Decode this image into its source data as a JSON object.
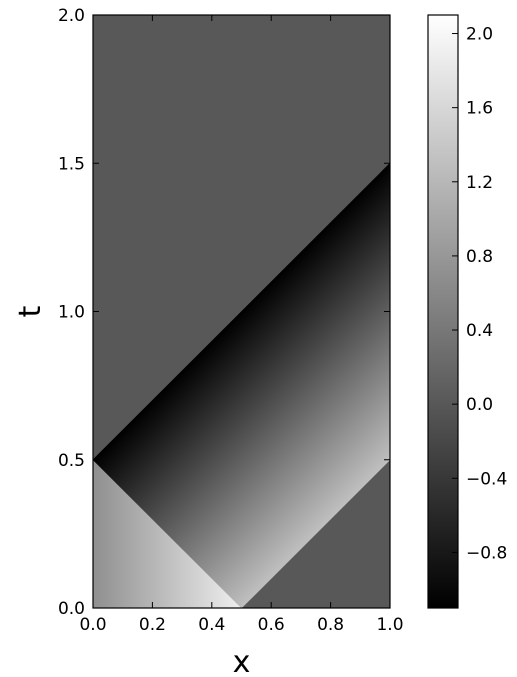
{
  "chart_data": {
    "type": "heatmap",
    "title": "",
    "xlabel": "x",
    "ylabel": "t",
    "xlim": [
      0.0,
      1.0
    ],
    "ylim": [
      0.0,
      2.0
    ],
    "x_ticks": [
      "0.0",
      "0.2",
      "0.4",
      "0.6",
      "0.8",
      "1.0"
    ],
    "y_ticks": [
      "0.0",
      "0.5",
      "1.0",
      "1.5",
      "2.0"
    ],
    "colormap": "gray",
    "colorbar": {
      "vmin": -1.1,
      "vmax": 2.1,
      "ticks": [
        2.0,
        1.6,
        1.2,
        0.8,
        0.4,
        0.0,
        -0.4,
        -0.8
      ],
      "tick_labels": [
        "2.0",
        "1.6",
        "1.2",
        "0.8",
        "0.4",
        "0.0",
        "−0.4",
        "−0.8"
      ]
    },
    "regions": [
      {
        "name": "upper",
        "vertices": [
          [
            0,
            0.5
          ],
          [
            0,
            2.0
          ],
          [
            1,
            2.0
          ],
          [
            1,
            1.5
          ]
        ],
        "value": 0.0
      },
      {
        "name": "right-lower",
        "vertices": [
          [
            0.5,
            0
          ],
          [
            1,
            0
          ],
          [
            1,
            0.5
          ]
        ],
        "value": 0.0
      },
      {
        "name": "left-wedge",
        "vertices": [
          [
            0,
            0
          ],
          [
            0.5,
            0
          ],
          [
            0,
            0.5
          ]
        ],
        "value_at_x0": 0.7,
        "value_at_x05": 1.9
      },
      {
        "name": "middle-band",
        "vertices": [
          [
            0,
            0.5
          ],
          [
            1,
            1.5
          ],
          [
            1,
            0.5
          ],
          [
            0.5,
            0
          ]
        ],
        "value_at_upper_edge": -1.1,
        "value_at_lower_edge": 1.3
      }
    ]
  }
}
